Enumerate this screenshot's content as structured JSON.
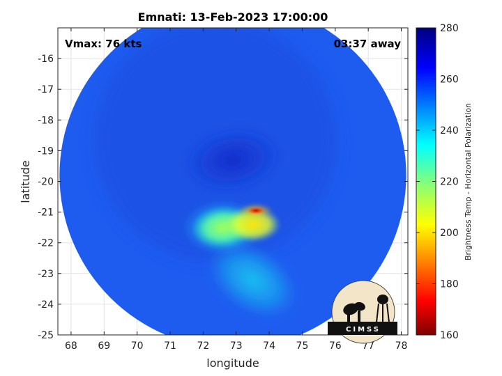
{
  "chart_data": {
    "type": "heatmap",
    "title": "Emnati: 13-Feb-2023 17:00:00",
    "xlabel": "longitude",
    "ylabel": "latitude",
    "xlim": [
      67.6,
      78.2
    ],
    "ylim": [
      -25,
      -15
    ],
    "xticks": [
      68,
      69,
      70,
      71,
      72,
      73,
      74,
      75,
      76,
      77,
      78
    ],
    "yticks": [
      -16,
      -17,
      -18,
      -19,
      -20,
      -21,
      -22,
      -23,
      -24,
      -25
    ],
    "grid": true,
    "annotations": {
      "vmax": "Vmax: 76 kts",
      "time_away": "03:37 away"
    },
    "colorbar": {
      "label": "Brightness Temp - Horizontal Polarization",
      "min": 160,
      "max": 280,
      "ticks": [
        280,
        260,
        240,
        220,
        200,
        180,
        160
      ],
      "colormap": "jet"
    },
    "swath": {
      "center_lon": 72.9,
      "center_lat": -19.8,
      "radius_deg": 5.25,
      "background_value": 262
    },
    "features": [
      {
        "name": "eye / cold core",
        "lon": 72.9,
        "lat": -19.3,
        "value": 268
      },
      {
        "name": "convective band",
        "lon": 72.6,
        "lat": -21.5,
        "value": 213
      },
      {
        "name": "deep convection",
        "lon": 73.5,
        "lat": -21.4,
        "value": 200
      },
      {
        "name": "coldest cell",
        "lon": 73.6,
        "lat": -20.95,
        "value": 180
      },
      {
        "name": "rain tail",
        "lon": 73.5,
        "lat": -23.2,
        "value": 236
      }
    ]
  },
  "logo": {
    "text": "CIMSS"
  }
}
